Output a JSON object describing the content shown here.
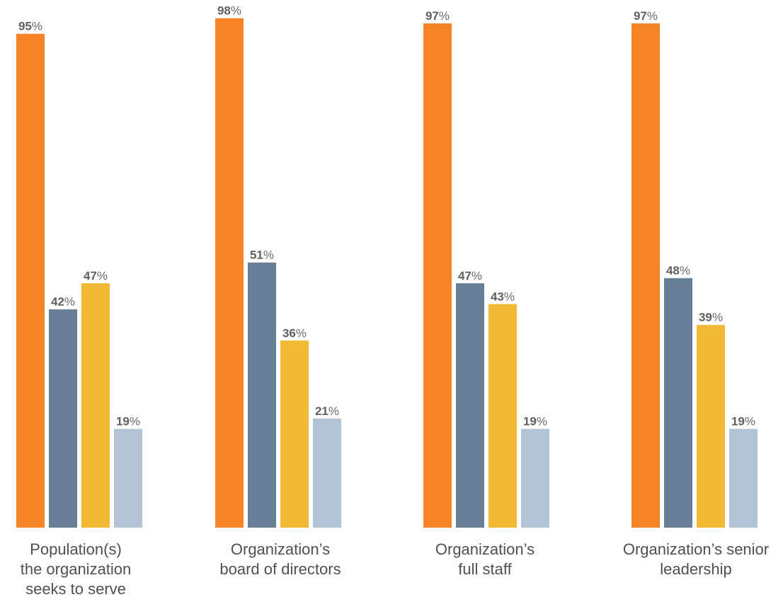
{
  "chart_data": {
    "type": "bar",
    "categories": [
      "Population(s) the organization seeks to serve",
      "Organization’s board of directors",
      "Organization’s full staff",
      "Organization’s senior leadership"
    ],
    "series": [
      {
        "values": [
          95,
          98,
          97,
          97
        ],
        "color": "#f58426"
      },
      {
        "values": [
          42,
          51,
          47,
          48
        ],
        "color": "#667e96"
      },
      {
        "values": [
          47,
          36,
          43,
          39
        ],
        "color": "#f2b935"
      },
      {
        "values": [
          19,
          21,
          19,
          19
        ],
        "color": "#b3c4d6"
      }
    ],
    "value_suffix": "%",
    "title": "",
    "xlabel": "",
    "ylabel": "",
    "ylim": [
      0,
      100
    ],
    "grid": false,
    "legend": "none"
  },
  "labels": {
    "cat0_line1": "Population(s)",
    "cat0_line2": "the organization",
    "cat0_line3": "seeks to serve",
    "cat1_line1": "Organization’s",
    "cat1_line2": "board of directors",
    "cat2_line1": "Organization’s",
    "cat2_line2": "full staff",
    "cat3_line1": "Organization’s senior",
    "cat3_line2": "leadership"
  }
}
